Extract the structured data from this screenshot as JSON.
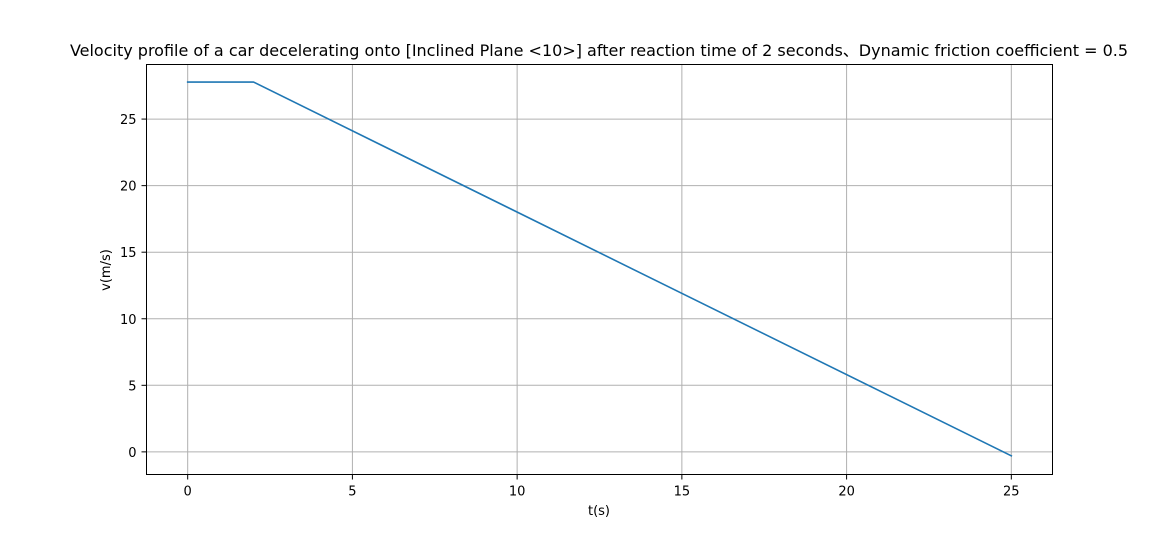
{
  "chart_data": {
    "type": "line",
    "title": "Velocity profile of a car decelerating onto [Inclined Plane <10>] after reaction time of 2 seconds、Dynamic friction coefficient = 0.5",
    "xlabel": "t(s)",
    "ylabel": "v(m/s)",
    "xlim": [
      -1.25,
      26.25
    ],
    "ylim": [
      -1.7,
      29.1
    ],
    "xticks": [
      0,
      5,
      10,
      15,
      20,
      25
    ],
    "yticks": [
      0,
      5,
      10,
      15,
      20,
      25
    ],
    "grid": true,
    "series": [
      {
        "x": [
          0,
          2,
          25
        ],
        "y": [
          27.78,
          27.78,
          -0.3
        ],
        "color": "#1f77b4"
      }
    ]
  }
}
